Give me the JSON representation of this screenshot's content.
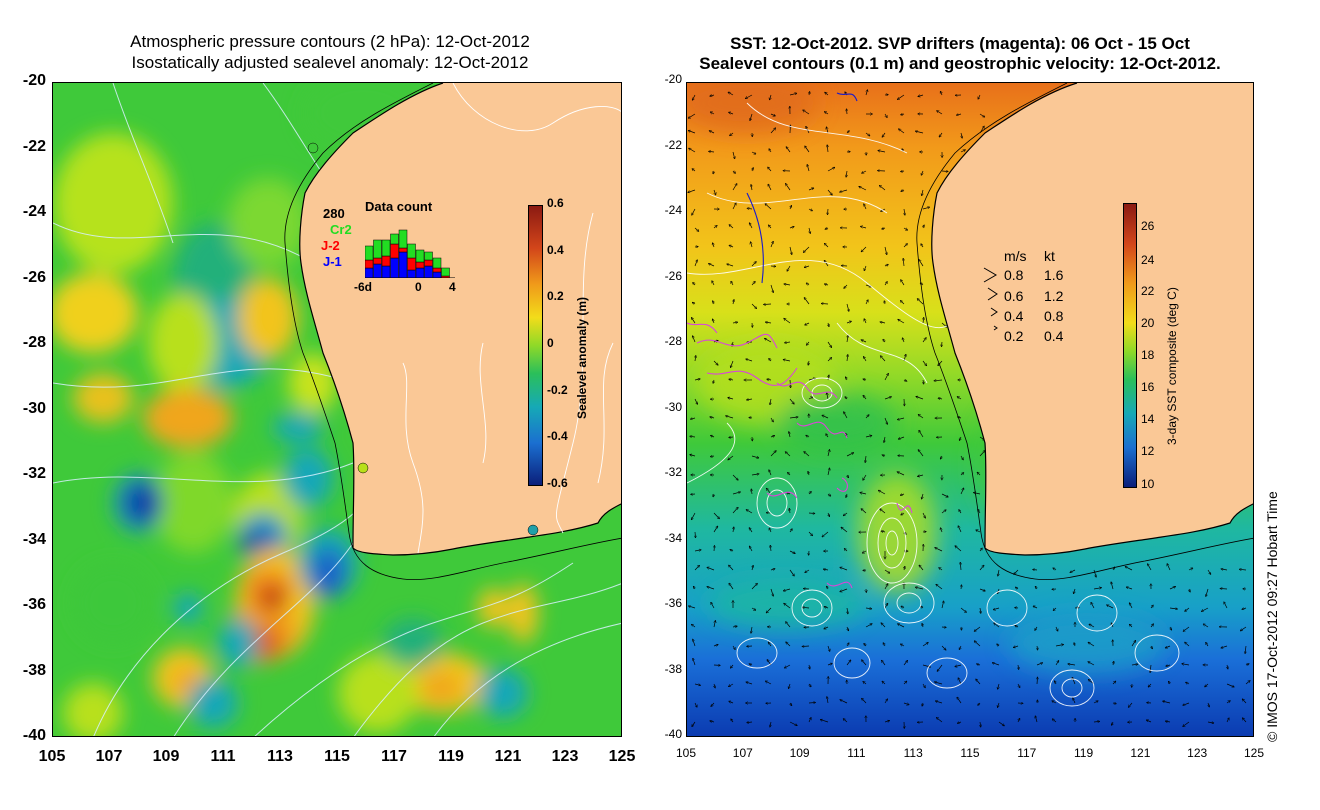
{
  "left_panel": {
    "title_line1": "Atmospheric pressure contours (2 hPa): 12-Oct-2012",
    "title_line2": "Isostatically adjusted sealevel anomaly: 12-Oct-2012",
    "y_ticks": [
      "-20",
      "-22",
      "-24",
      "-26",
      "-28",
      "-30",
      "-32",
      "-34",
      "-36",
      "-38",
      "-40"
    ],
    "x_ticks": [
      "105",
      "107",
      "109",
      "111",
      "113",
      "115",
      "117",
      "119",
      "121",
      "123",
      "125"
    ],
    "colorbar": {
      "title": "Sealevel anomaly (m)",
      "ticks": [
        "0.6",
        "0.4",
        "0.2",
        "0",
        "-0.2",
        "-0.4",
        "-0.6"
      ]
    },
    "data_count": {
      "title": "Data count",
      "max": "280",
      "series": [
        "Cr2",
        "J-2",
        "J-1"
      ],
      "series_colors": [
        "#22dd22",
        "#ff0000",
        "#0000ff"
      ],
      "x_ticks": [
        "-6d",
        "0",
        "4"
      ]
    }
  },
  "right_panel": {
    "title_line1": "SST: 12-Oct-2012. SVP drifters (magenta): 06 Oct - 15 Oct",
    "title_line2": "Sealevel contours (0.1 m) and geostrophic velocity: 12-Oct-2012.",
    "y_ticks": [
      "-20",
      "-22",
      "-24",
      "-26",
      "-28",
      "-30",
      "-32",
      "-34",
      "-36",
      "-38",
      "-40"
    ],
    "x_ticks": [
      "105",
      "107",
      "109",
      "111",
      "113",
      "115",
      "117",
      "119",
      "121",
      "123",
      "125"
    ],
    "colorbar": {
      "title": "3-day SST composite (deg C)",
      "ticks": [
        "26",
        "24",
        "22",
        "20",
        "18",
        "16",
        "14",
        "12",
        "10"
      ]
    },
    "velocity_legend": {
      "header_ms": "m/s",
      "header_kt": "kt",
      "rows": [
        {
          "ms": "0.8",
          "kt": "1.6"
        },
        {
          "ms": "0.6",
          "kt": "1.2"
        },
        {
          "ms": "0.4",
          "kt": "0.8"
        },
        {
          "ms": "0.2",
          "kt": "0.4"
        }
      ]
    }
  },
  "copyright": "© IMOS 17-Oct-2012 09:27 Hobart Time",
  "colors": {
    "land": "#fac896",
    "coast_line": "#000000",
    "drifter": "#d946d9"
  }
}
